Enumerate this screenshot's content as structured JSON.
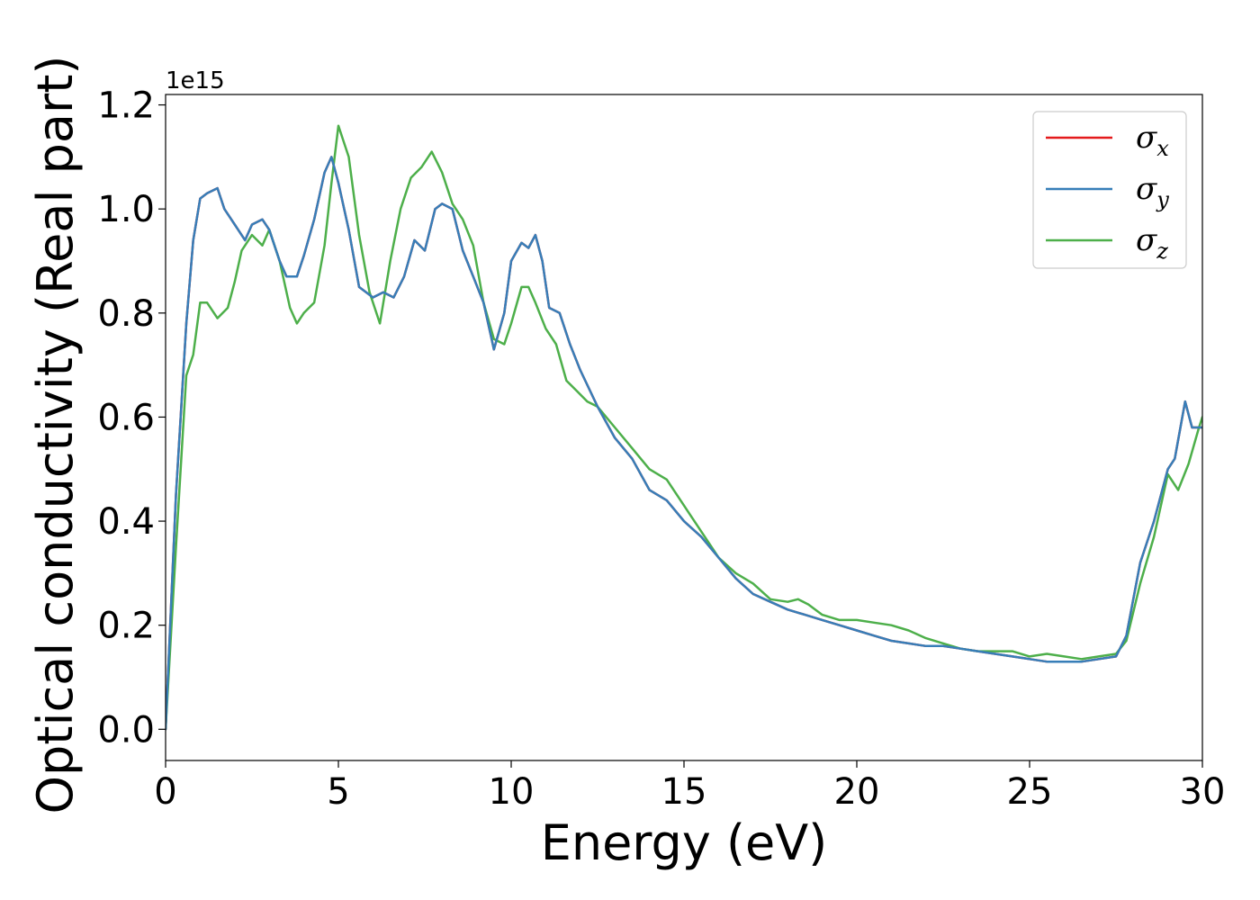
{
  "chart_data": {
    "type": "line",
    "xlabel": "Energy (eV)",
    "ylabel": "Optical conductivity (Real part)",
    "y_offset_label": "1e15",
    "xlim": [
      0,
      30
    ],
    "ylim": [
      -0.06,
      1.22
    ],
    "x_ticks": [
      0,
      5,
      10,
      15,
      20,
      25,
      30
    ],
    "x_tick_labels": [
      "0",
      "5",
      "10",
      "15",
      "20",
      "25",
      "30"
    ],
    "y_ticks": [
      0.0,
      0.2,
      0.4,
      0.6,
      0.8,
      1.0,
      1.2
    ],
    "y_tick_labels": [
      "0.0",
      "0.2",
      "0.4",
      "0.6",
      "0.8",
      "1.0",
      "1.2"
    ],
    "grid": false,
    "legend_placement": "top-right",
    "colors": {
      "sigma_x": "#e41a1c",
      "sigma_y": "#377eb8",
      "sigma_z": "#4daf4a"
    },
    "series": [
      {
        "name": "σx",
        "legend_main": "σ",
        "legend_sub": "x",
        "color": "#e41a1c",
        "x": [
          0,
          0.3,
          0.6,
          0.8,
          1.0,
          1.2,
          1.5,
          1.7,
          2.0,
          2.3,
          2.5,
          2.8,
          3.0,
          3.3,
          3.5,
          3.8,
          4.0,
          4.3,
          4.6,
          4.8,
          5.0,
          5.3,
          5.6,
          6.0,
          6.3,
          6.6,
          6.9,
          7.2,
          7.5,
          7.8,
          8.0,
          8.3,
          8.6,
          8.9,
          9.2,
          9.5,
          9.8,
          10.0,
          10.3,
          10.5,
          10.7,
          10.9,
          11.1,
          11.4,
          11.7,
          12.0,
          12.5,
          13.0,
          13.5,
          14.0,
          14.5,
          15.0,
          15.5,
          16.0,
          16.5,
          17.0,
          17.5,
          18.0,
          18.5,
          19.0,
          19.5,
          20.0,
          20.5,
          21.0,
          21.5,
          22.0,
          22.5,
          23.0,
          23.5,
          24.0,
          24.5,
          25.0,
          25.5,
          26.0,
          26.5,
          27.0,
          27.5,
          27.8,
          28.2,
          28.6,
          29.0,
          29.2,
          29.5,
          29.7,
          30.0
        ],
        "values": [
          0.0,
          0.45,
          0.78,
          0.94,
          1.02,
          1.03,
          1.04,
          1.0,
          0.97,
          0.94,
          0.97,
          0.98,
          0.96,
          0.9,
          0.87,
          0.87,
          0.91,
          0.98,
          1.07,
          1.1,
          1.05,
          0.96,
          0.85,
          0.83,
          0.84,
          0.83,
          0.87,
          0.94,
          0.92,
          1.0,
          1.01,
          1.0,
          0.92,
          0.87,
          0.82,
          0.73,
          0.8,
          0.9,
          0.935,
          0.925,
          0.95,
          0.9,
          0.81,
          0.8,
          0.74,
          0.69,
          0.62,
          0.56,
          0.52,
          0.46,
          0.44,
          0.4,
          0.37,
          0.33,
          0.29,
          0.26,
          0.245,
          0.23,
          0.22,
          0.21,
          0.2,
          0.19,
          0.18,
          0.17,
          0.165,
          0.16,
          0.16,
          0.155,
          0.15,
          0.145,
          0.14,
          0.135,
          0.13,
          0.13,
          0.13,
          0.135,
          0.14,
          0.18,
          0.32,
          0.4,
          0.5,
          0.52,
          0.63,
          0.58,
          0.58
        ]
      },
      {
        "name": "σy",
        "legend_main": "σ",
        "legend_sub": "y",
        "color": "#377eb8",
        "x": [
          0,
          0.3,
          0.6,
          0.8,
          1.0,
          1.2,
          1.5,
          1.7,
          2.0,
          2.3,
          2.5,
          2.8,
          3.0,
          3.3,
          3.5,
          3.8,
          4.0,
          4.3,
          4.6,
          4.8,
          5.0,
          5.3,
          5.6,
          6.0,
          6.3,
          6.6,
          6.9,
          7.2,
          7.5,
          7.8,
          8.0,
          8.3,
          8.6,
          8.9,
          9.2,
          9.5,
          9.8,
          10.0,
          10.3,
          10.5,
          10.7,
          10.9,
          11.1,
          11.4,
          11.7,
          12.0,
          12.5,
          13.0,
          13.5,
          14.0,
          14.5,
          15.0,
          15.5,
          16.0,
          16.5,
          17.0,
          17.5,
          18.0,
          18.5,
          19.0,
          19.5,
          20.0,
          20.5,
          21.0,
          21.5,
          22.0,
          22.5,
          23.0,
          23.5,
          24.0,
          24.5,
          25.0,
          25.5,
          26.0,
          26.5,
          27.0,
          27.5,
          27.8,
          28.2,
          28.6,
          29.0,
          29.2,
          29.5,
          29.7,
          30.0
        ],
        "values": [
          0.0,
          0.45,
          0.78,
          0.94,
          1.02,
          1.03,
          1.04,
          1.0,
          0.97,
          0.94,
          0.97,
          0.98,
          0.96,
          0.9,
          0.87,
          0.87,
          0.91,
          0.98,
          1.07,
          1.1,
          1.05,
          0.96,
          0.85,
          0.83,
          0.84,
          0.83,
          0.87,
          0.94,
          0.92,
          1.0,
          1.01,
          1.0,
          0.92,
          0.87,
          0.82,
          0.73,
          0.8,
          0.9,
          0.935,
          0.925,
          0.95,
          0.9,
          0.81,
          0.8,
          0.74,
          0.69,
          0.62,
          0.56,
          0.52,
          0.46,
          0.44,
          0.4,
          0.37,
          0.33,
          0.29,
          0.26,
          0.245,
          0.23,
          0.22,
          0.21,
          0.2,
          0.19,
          0.18,
          0.17,
          0.165,
          0.16,
          0.16,
          0.155,
          0.15,
          0.145,
          0.14,
          0.135,
          0.13,
          0.13,
          0.13,
          0.135,
          0.14,
          0.18,
          0.32,
          0.4,
          0.5,
          0.52,
          0.63,
          0.58,
          0.58
        ]
      },
      {
        "name": "σz",
        "legend_main": "σ",
        "legend_sub": "z",
        "color": "#4daf4a",
        "x": [
          0,
          0.3,
          0.6,
          0.8,
          1.0,
          1.2,
          1.5,
          1.8,
          2.0,
          2.2,
          2.5,
          2.8,
          3.0,
          3.3,
          3.6,
          3.8,
          4.0,
          4.3,
          4.6,
          4.8,
          5.0,
          5.3,
          5.6,
          5.9,
          6.2,
          6.5,
          6.8,
          7.1,
          7.4,
          7.7,
          8.0,
          8.3,
          8.6,
          8.9,
          9.2,
          9.5,
          9.8,
          10.0,
          10.3,
          10.5,
          10.7,
          11.0,
          11.3,
          11.6,
          11.9,
          12.2,
          12.5,
          13.0,
          13.5,
          14.0,
          14.5,
          15.0,
          15.5,
          16.0,
          16.5,
          17.0,
          17.5,
          18.0,
          18.3,
          18.6,
          19.0,
          19.5,
          20.0,
          20.5,
          21.0,
          21.5,
          22.0,
          22.5,
          23.0,
          23.5,
          24.0,
          24.5,
          25.0,
          25.5,
          26.0,
          26.5,
          27.0,
          27.5,
          27.8,
          28.2,
          28.6,
          29.0,
          29.3,
          29.6,
          29.9,
          30.0
        ],
        "values": [
          0.0,
          0.35,
          0.68,
          0.72,
          0.82,
          0.82,
          0.79,
          0.81,
          0.86,
          0.92,
          0.95,
          0.93,
          0.96,
          0.9,
          0.81,
          0.78,
          0.8,
          0.82,
          0.93,
          1.05,
          1.16,
          1.1,
          0.95,
          0.84,
          0.78,
          0.9,
          1.0,
          1.06,
          1.08,
          1.11,
          1.07,
          1.01,
          0.98,
          0.93,
          0.82,
          0.75,
          0.74,
          0.78,
          0.85,
          0.85,
          0.82,
          0.77,
          0.74,
          0.67,
          0.65,
          0.63,
          0.62,
          0.58,
          0.54,
          0.5,
          0.48,
          0.43,
          0.38,
          0.33,
          0.3,
          0.28,
          0.25,
          0.245,
          0.25,
          0.24,
          0.22,
          0.21,
          0.21,
          0.205,
          0.2,
          0.19,
          0.175,
          0.165,
          0.155,
          0.15,
          0.15,
          0.15,
          0.14,
          0.145,
          0.14,
          0.135,
          0.14,
          0.145,
          0.17,
          0.28,
          0.37,
          0.49,
          0.46,
          0.51,
          0.58,
          0.6
        ]
      }
    ]
  }
}
